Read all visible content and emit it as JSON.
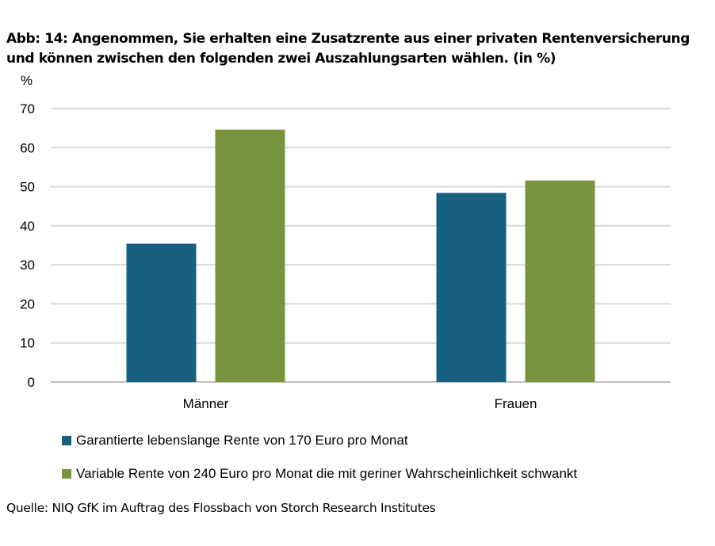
{
  "chart_data": {
    "type": "bar",
    "title": "Abb: 14: Angenommen, Sie erhalten eine Zusatzrente aus einer privaten Rentenversicherung und können zwischen den folgenden zwei Auszahlungsarten wählen. (in %)",
    "ylabel": "%",
    "categories": [
      "Männer",
      "Frauen"
    ],
    "ylim": [
      0,
      70
    ],
    "yticks": [
      0,
      10,
      20,
      30,
      40,
      50,
      60,
      70
    ],
    "grid": true,
    "legend_position": "bottom",
    "series": [
      {
        "name": "Garantierte lebenslange Rente von 170 Euro pro Monat",
        "values": [
          35.4,
          48.4
        ],
        "color": "#17607f"
      },
      {
        "name": "Variable Rente von 240 Euro pro Monat die mit geriner Wahrscheinlichkeit schwankt",
        "values": [
          64.6,
          51.6
        ],
        "color": "#78943c"
      }
    ]
  },
  "source": "Quelle: NIQ GfK im Auftrag des Flossbach von Storch Research Institutes"
}
